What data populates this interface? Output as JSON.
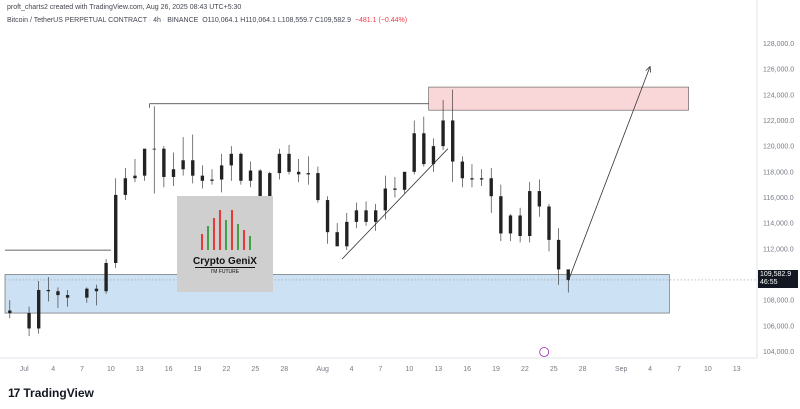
{
  "header": {
    "created_line": "proft_charts2 created with TradingView.com, Aug 26, 2025 08:43 UTC+5:30"
  },
  "symbol": {
    "name": "Bitcoin / TetherUS PERPETUAL CONTRACT",
    "interval": "4h",
    "exchange": "BINANCE",
    "ohlc": "O110,064.1  H110,064.1  L108,559.7  C109,582.9",
    "change": "−481.1 (−0.44%)"
  },
  "price_tag": {
    "price": "109,582.9",
    "countdown": "46:55"
  },
  "watermark": {
    "title": "Crypto GeniX",
    "subtitle": "I'M FUTURE"
  },
  "footer": {
    "brand": "TradingView",
    "brand_mark": "17"
  },
  "colors": {
    "candle_up": "#089981",
    "candle_down": "#f23645",
    "support_zone": "#b8d4f0",
    "resistance_zone": "#f7c5c8",
    "text": "#131722",
    "axis_text": "#787b86"
  },
  "chart_data": {
    "type": "line",
    "title": "Bitcoin / TetherUS PERPETUAL CONTRACT",
    "xlabel": "",
    "ylabel": "",
    "x_ticks": [
      "Jul",
      "4",
      "7",
      "10",
      "13",
      "16",
      "19",
      "22",
      "25",
      "28",
      "Aug",
      "4",
      "7",
      "10",
      "13",
      "16",
      "19",
      "22",
      "25",
      "28",
      "Sep",
      "4",
      "7",
      "10",
      "13"
    ],
    "y_ticks": [
      "128,000.0",
      "126,000.0",
      "124,000.0",
      "122,000.0",
      "120,000.0",
      "118,000.0",
      "116,000.0",
      "114,000.0",
      "112,000.0",
      "110,000.0",
      "108,000.0",
      "106,000.0",
      "104,000.0"
    ],
    "ylim": [
      103500,
      129200
    ],
    "xlim": [
      "2025-06-29",
      "2025-09-15"
    ],
    "grid": false,
    "series": [
      {
        "type": "candlestick-approx",
        "x": [
          "2025-06-29",
          "2025-07-01",
          "2025-07-02",
          "2025-07-03",
          "2025-07-04",
          "2025-07-05",
          "2025-07-07",
          "2025-07-08",
          "2025-07-09",
          "2025-07-10",
          "2025-07-11",
          "2025-07-12",
          "2025-07-13",
          "2025-07-14",
          "2025-07-15",
          "2025-07-16",
          "2025-07-17",
          "2025-07-18",
          "2025-07-19",
          "2025-07-20",
          "2025-07-21",
          "2025-07-22",
          "2025-07-23",
          "2025-07-24",
          "2025-07-25",
          "2025-07-26",
          "2025-07-27",
          "2025-07-28",
          "2025-07-29",
          "2025-07-30",
          "2025-07-31",
          "2025-08-01",
          "2025-08-02",
          "2025-08-03",
          "2025-08-04",
          "2025-08-05",
          "2025-08-06",
          "2025-08-07",
          "2025-08-08",
          "2025-08-09",
          "2025-08-10",
          "2025-08-11",
          "2025-08-12",
          "2025-08-13",
          "2025-08-14",
          "2025-08-15",
          "2025-08-16",
          "2025-08-17",
          "2025-08-18",
          "2025-08-19",
          "2025-08-20",
          "2025-08-21",
          "2025-08-22",
          "2025-08-23",
          "2025-08-24",
          "2025-08-25",
          "2025-08-26"
        ],
        "open": [
          107200,
          107000,
          105800,
          108800,
          108700,
          108400,
          108200,
          108900,
          108700,
          110900,
          116200,
          117500,
          117700,
          119800,
          119800,
          117600,
          118200,
          118900,
          117700,
          117300,
          117400,
          118500,
          119400,
          117300,
          118100,
          115600,
          117900,
          119400,
          118000,
          117800,
          117900,
          115800,
          113300,
          112200,
          114100,
          115000,
          114100,
          115000,
          116700,
          116600,
          118000,
          121000,
          118600,
          120000,
          122000,
          118800,
          117500,
          117400,
          117500,
          116100,
          113200,
          114600,
          113000,
          116500,
          115300,
          112700,
          110400
        ],
        "high": [
          108000,
          107500,
          109500,
          109800,
          109000,
          108800,
          109000,
          109200,
          111200,
          117500,
          118300,
          119000,
          119600,
          123100,
          120000,
          119500,
          120700,
          120900,
          118500,
          118200,
          119400,
          120000,
          119500,
          118800,
          118200,
          118000,
          119800,
          120100,
          119000,
          119200,
          118400,
          116100,
          114000,
          114800,
          115600,
          115700,
          115500,
          117700,
          117600,
          118000,
          122000,
          122300,
          120600,
          123600,
          124400,
          119200,
          118600,
          118200,
          118300,
          117000,
          114700,
          115200,
          117200,
          117400,
          115500,
          113600,
          110300
        ],
        "low": [
          106600,
          105200,
          105400,
          107900,
          107400,
          107500,
          107800,
          107600,
          108500,
          110500,
          115800,
          117200,
          117300,
          116300,
          116800,
          116900,
          117700,
          117100,
          116700,
          117000,
          116400,
          117300,
          117000,
          116800,
          115000,
          115100,
          117400,
          117800,
          117200,
          117000,
          115600,
          112400,
          112200,
          111900,
          113600,
          113800,
          113400,
          114300,
          116000,
          116300,
          117800,
          118400,
          118000,
          119700,
          117200,
          116800,
          116800,
          116900,
          114800,
          112600,
          112600,
          112500,
          112500,
          114500,
          111800,
          109200,
          108600
        ],
        "close": [
          107000,
          105800,
          108800,
          108700,
          108400,
          108200,
          108900,
          108700,
          110900,
          116200,
          117500,
          117700,
          119800,
          119800,
          117600,
          118200,
          118900,
          117700,
          117300,
          117400,
          118500,
          119400,
          117300,
          118100,
          115600,
          117900,
          119400,
          118000,
          117800,
          117900,
          115800,
          113300,
          112200,
          114100,
          115000,
          114100,
          115000,
          116700,
          116600,
          118000,
          121000,
          118600,
          120000,
          122000,
          118800,
          117500,
          117400,
          117500,
          116100,
          113200,
          114600,
          113000,
          116500,
          115300,
          112700,
          110400,
          109583
        ]
      }
    ],
    "annotations": {
      "resistance_zone": {
        "x_start": "2025-08-12",
        "x_end": "2025-09-08",
        "y_low": 122800,
        "y_high": 124600
      },
      "support_zone": {
        "x_start": "2025-06-29",
        "x_end": "2025-09-06",
        "y_low": 107000,
        "y_high": 110000
      },
      "top_level_line": {
        "x_start": "2025-07-14",
        "x_end": "2025-08-12",
        "y": 123300
      },
      "breakout_level_line": {
        "x_start": "2025-06-29",
        "x_end": "2025-07-10",
        "y": 111900
      },
      "rising_trendline": {
        "x_start": "2025-08-03",
        "y_start": 111200,
        "x_end": "2025-08-14",
        "y_end": 119800
      },
      "projection_arrow": {
        "x_start": "2025-08-26",
        "y_start": 109500,
        "x_end": "2025-09-04",
        "y_end": 126200
      },
      "current_price_line": 109583
    }
  }
}
